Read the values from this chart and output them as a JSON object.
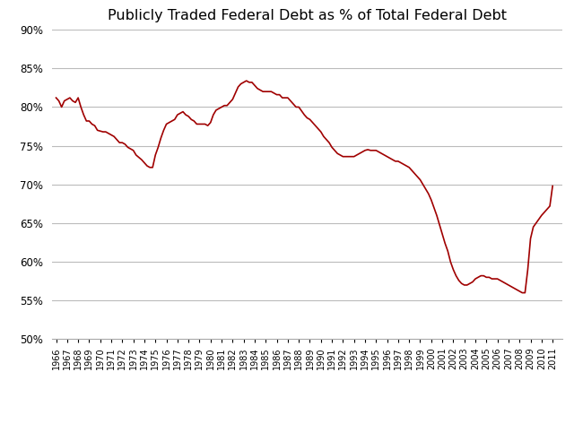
{
  "title": "Publicly Traded Federal Debt as % of Total Federal Debt",
  "line_color": "#A00000",
  "background_color": "#FFFFFF",
  "grid_color": "#BBBBBB",
  "ylim": [
    0.5,
    0.9
  ],
  "yticks": [
    0.5,
    0.55,
    0.6,
    0.65,
    0.7,
    0.75,
    0.8,
    0.85,
    0.9
  ],
  "xlim_start": 1965.6,
  "xlim_end": 2011.9,
  "data": [
    [
      1966.0,
      0.812
    ],
    [
      1966.25,
      0.808
    ],
    [
      1966.5,
      0.8
    ],
    [
      1966.75,
      0.808
    ],
    [
      1967.0,
      0.81
    ],
    [
      1967.25,
      0.812
    ],
    [
      1967.5,
      0.808
    ],
    [
      1967.75,
      0.806
    ],
    [
      1968.0,
      0.812
    ],
    [
      1968.25,
      0.8
    ],
    [
      1968.5,
      0.79
    ],
    [
      1968.75,
      0.782
    ],
    [
      1969.0,
      0.782
    ],
    [
      1969.25,
      0.778
    ],
    [
      1969.5,
      0.776
    ],
    [
      1969.75,
      0.77
    ],
    [
      1970.0,
      0.769
    ],
    [
      1970.25,
      0.768
    ],
    [
      1970.5,
      0.768
    ],
    [
      1970.75,
      0.766
    ],
    [
      1971.0,
      0.764
    ],
    [
      1971.25,
      0.762
    ],
    [
      1971.5,
      0.758
    ],
    [
      1971.75,
      0.754
    ],
    [
      1972.0,
      0.754
    ],
    [
      1972.25,
      0.752
    ],
    [
      1972.5,
      0.748
    ],
    [
      1972.75,
      0.746
    ],
    [
      1973.0,
      0.744
    ],
    [
      1973.25,
      0.738
    ],
    [
      1973.5,
      0.735
    ],
    [
      1973.75,
      0.732
    ],
    [
      1974.0,
      0.728
    ],
    [
      1974.25,
      0.724
    ],
    [
      1974.5,
      0.722
    ],
    [
      1974.75,
      0.722
    ],
    [
      1975.0,
      0.738
    ],
    [
      1975.25,
      0.748
    ],
    [
      1975.5,
      0.76
    ],
    [
      1975.75,
      0.77
    ],
    [
      1976.0,
      0.778
    ],
    [
      1976.25,
      0.78
    ],
    [
      1976.5,
      0.782
    ],
    [
      1976.75,
      0.784
    ],
    [
      1977.0,
      0.79
    ],
    [
      1977.25,
      0.792
    ],
    [
      1977.5,
      0.794
    ],
    [
      1977.75,
      0.79
    ],
    [
      1978.0,
      0.788
    ],
    [
      1978.25,
      0.784
    ],
    [
      1978.5,
      0.782
    ],
    [
      1978.75,
      0.778
    ],
    [
      1979.0,
      0.778
    ],
    [
      1979.25,
      0.778
    ],
    [
      1979.5,
      0.778
    ],
    [
      1979.75,
      0.776
    ],
    [
      1980.0,
      0.78
    ],
    [
      1980.25,
      0.79
    ],
    [
      1980.5,
      0.796
    ],
    [
      1980.75,
      0.798
    ],
    [
      1981.0,
      0.8
    ],
    [
      1981.25,
      0.802
    ],
    [
      1981.5,
      0.802
    ],
    [
      1981.75,
      0.806
    ],
    [
      1982.0,
      0.81
    ],
    [
      1982.25,
      0.818
    ],
    [
      1982.5,
      0.826
    ],
    [
      1982.75,
      0.83
    ],
    [
      1983.0,
      0.832
    ],
    [
      1983.25,
      0.834
    ],
    [
      1983.5,
      0.832
    ],
    [
      1983.75,
      0.832
    ],
    [
      1984.0,
      0.828
    ],
    [
      1984.25,
      0.824
    ],
    [
      1984.5,
      0.822
    ],
    [
      1984.75,
      0.82
    ],
    [
      1985.0,
      0.82
    ],
    [
      1985.25,
      0.82
    ],
    [
      1985.5,
      0.82
    ],
    [
      1985.75,
      0.818
    ],
    [
      1986.0,
      0.816
    ],
    [
      1986.25,
      0.816
    ],
    [
      1986.5,
      0.812
    ],
    [
      1986.75,
      0.812
    ],
    [
      1987.0,
      0.812
    ],
    [
      1987.25,
      0.808
    ],
    [
      1987.5,
      0.804
    ],
    [
      1987.75,
      0.8
    ],
    [
      1988.0,
      0.8
    ],
    [
      1988.25,
      0.795
    ],
    [
      1988.5,
      0.79
    ],
    [
      1988.75,
      0.786
    ],
    [
      1989.0,
      0.784
    ],
    [
      1989.25,
      0.78
    ],
    [
      1989.5,
      0.776
    ],
    [
      1989.75,
      0.772
    ],
    [
      1990.0,
      0.768
    ],
    [
      1990.25,
      0.762
    ],
    [
      1990.5,
      0.758
    ],
    [
      1990.75,
      0.754
    ],
    [
      1991.0,
      0.748
    ],
    [
      1991.25,
      0.744
    ],
    [
      1991.5,
      0.74
    ],
    [
      1991.75,
      0.738
    ],
    [
      1992.0,
      0.736
    ],
    [
      1992.25,
      0.736
    ],
    [
      1992.5,
      0.736
    ],
    [
      1992.75,
      0.736
    ],
    [
      1993.0,
      0.736
    ],
    [
      1993.25,
      0.738
    ],
    [
      1993.5,
      0.74
    ],
    [
      1993.75,
      0.742
    ],
    [
      1994.0,
      0.744
    ],
    [
      1994.25,
      0.745
    ],
    [
      1994.5,
      0.744
    ],
    [
      1994.75,
      0.744
    ],
    [
      1995.0,
      0.744
    ],
    [
      1995.25,
      0.742
    ],
    [
      1995.5,
      0.74
    ],
    [
      1995.75,
      0.738
    ],
    [
      1996.0,
      0.736
    ],
    [
      1996.25,
      0.734
    ],
    [
      1996.5,
      0.732
    ],
    [
      1996.75,
      0.73
    ],
    [
      1997.0,
      0.73
    ],
    [
      1997.25,
      0.728
    ],
    [
      1997.5,
      0.726
    ],
    [
      1997.75,
      0.724
    ],
    [
      1998.0,
      0.722
    ],
    [
      1998.25,
      0.718
    ],
    [
      1998.5,
      0.714
    ],
    [
      1998.75,
      0.71
    ],
    [
      1999.0,
      0.706
    ],
    [
      1999.25,
      0.7
    ],
    [
      1999.5,
      0.694
    ],
    [
      1999.75,
      0.688
    ],
    [
      2000.0,
      0.68
    ],
    [
      2000.25,
      0.67
    ],
    [
      2000.5,
      0.66
    ],
    [
      2000.75,
      0.648
    ],
    [
      2001.0,
      0.636
    ],
    [
      2001.25,
      0.624
    ],
    [
      2001.5,
      0.614
    ],
    [
      2001.75,
      0.6
    ],
    [
      2002.0,
      0.59
    ],
    [
      2002.25,
      0.582
    ],
    [
      2002.5,
      0.576
    ],
    [
      2002.75,
      0.572
    ],
    [
      2003.0,
      0.57
    ],
    [
      2003.25,
      0.57
    ],
    [
      2003.5,
      0.572
    ],
    [
      2003.75,
      0.574
    ],
    [
      2004.0,
      0.578
    ],
    [
      2004.25,
      0.58
    ],
    [
      2004.5,
      0.582
    ],
    [
      2004.75,
      0.582
    ],
    [
      2005.0,
      0.58
    ],
    [
      2005.25,
      0.58
    ],
    [
      2005.5,
      0.578
    ],
    [
      2005.75,
      0.578
    ],
    [
      2006.0,
      0.578
    ],
    [
      2006.25,
      0.576
    ],
    [
      2006.5,
      0.574
    ],
    [
      2006.75,
      0.572
    ],
    [
      2007.0,
      0.57
    ],
    [
      2007.25,
      0.568
    ],
    [
      2007.5,
      0.566
    ],
    [
      2007.75,
      0.564
    ],
    [
      2008.0,
      0.562
    ],
    [
      2008.25,
      0.56
    ],
    [
      2008.5,
      0.56
    ],
    [
      2008.75,
      0.59
    ],
    [
      2009.0,
      0.63
    ],
    [
      2009.25,
      0.645
    ],
    [
      2009.5,
      0.65
    ],
    [
      2009.75,
      0.655
    ],
    [
      2010.0,
      0.66
    ],
    [
      2010.25,
      0.664
    ],
    [
      2010.5,
      0.668
    ],
    [
      2010.75,
      0.672
    ],
    [
      2011.0,
      0.698
    ]
  ]
}
